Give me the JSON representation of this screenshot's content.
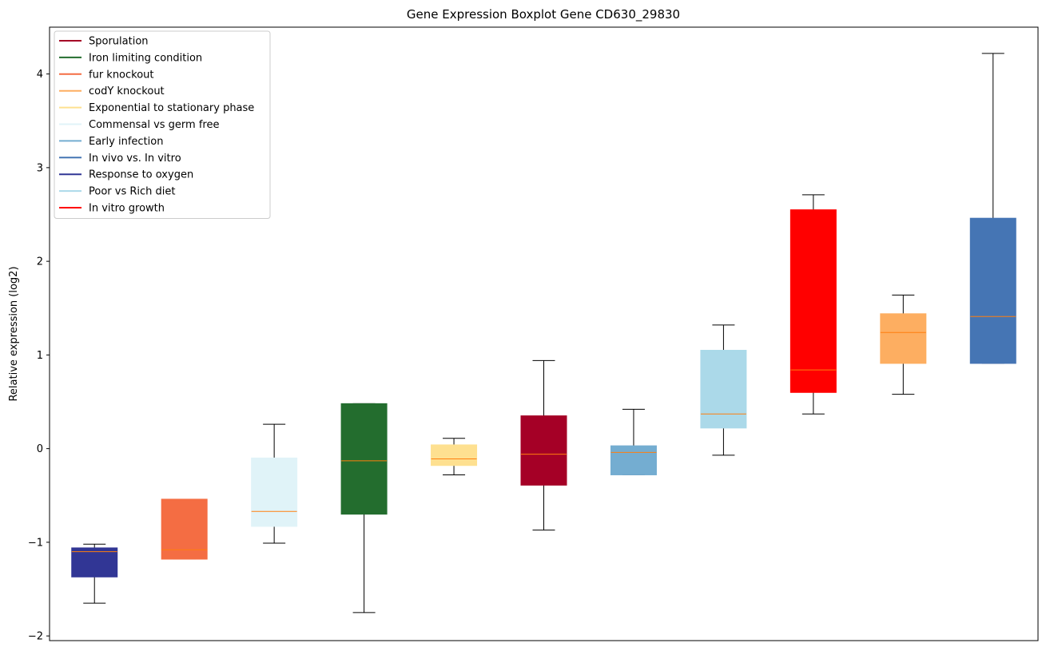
{
  "chart_data": {
    "type": "boxplot",
    "title": "Gene Expression Boxplot Gene CD630_29830",
    "xlabel": "",
    "ylabel": "Relative expression (log2)",
    "ylim": [
      -2.05,
      4.5
    ],
    "yticks": [
      -2,
      -1,
      0,
      1,
      2,
      3,
      4
    ],
    "ytick_labels": [
      "−2",
      "−1",
      "0",
      "1",
      "2",
      "3",
      "4"
    ],
    "legend_position": "top-left",
    "legend": [
      {
        "label": "Sporulation",
        "color": "#a50026"
      },
      {
        "label": "Iron limiting condition",
        "color": "#236d2e"
      },
      {
        "label": "fur knockout",
        "color": "#f46d43"
      },
      {
        "label": "codY knockout",
        "color": "#fdae61"
      },
      {
        "label": "Exponential to stationary phase",
        "color": "#fee090"
      },
      {
        "label": "Commensal vs germ free",
        "color": "#e0f3f8"
      },
      {
        "label": "Early infection",
        "color": "#74add1"
      },
      {
        "label": "In vivo vs. In vitro",
        "color": "#4575b4"
      },
      {
        "label": "Response to oxygen",
        "color": "#313695"
      },
      {
        "label": "Poor vs Rich diet",
        "color": "#abd9e9"
      },
      {
        "label": "In vitro growth",
        "color": "#ff0000"
      }
    ],
    "median_color": "#ff7f0e",
    "boxes": [
      {
        "group": "Response to oxygen",
        "color": "#313695",
        "whisker_low": -1.65,
        "q1": -1.37,
        "median": -1.1,
        "q3": -1.06,
        "whisker_high": -1.02
      },
      {
        "group": "fur knockout",
        "color": "#f46d43",
        "whisker_low": -1.18,
        "q1": -1.18,
        "median": -1.08,
        "q3": -0.54,
        "whisker_high": -0.54
      },
      {
        "group": "Commensal vs germ free",
        "color": "#e0f3f8",
        "whisker_low": -1.01,
        "q1": -0.83,
        "median": -0.67,
        "q3": -0.1,
        "whisker_high": 0.26
      },
      {
        "group": "Iron limiting condition",
        "color": "#236d2e",
        "whisker_low": -1.75,
        "q1": -0.7,
        "median": -0.13,
        "q3": 0.48,
        "whisker_high": 0.48
      },
      {
        "group": "Exponential to stationary phase",
        "color": "#fee090",
        "whisker_low": -0.28,
        "q1": -0.18,
        "median": -0.11,
        "q3": 0.04,
        "whisker_high": 0.11
      },
      {
        "group": "Sporulation",
        "color": "#a50026",
        "whisker_low": -0.87,
        "q1": -0.39,
        "median": -0.06,
        "q3": 0.35,
        "whisker_high": 0.94
      },
      {
        "group": "Early infection",
        "color": "#74add1",
        "whisker_low": -0.28,
        "q1": -0.28,
        "median": -0.04,
        "q3": 0.03,
        "whisker_high": 0.42
      },
      {
        "group": "Poor vs Rich diet",
        "color": "#abd9e9",
        "whisker_low": -0.07,
        "q1": 0.22,
        "median": 0.37,
        "q3": 1.05,
        "whisker_high": 1.32
      },
      {
        "group": "In vitro growth",
        "color": "#ff0000",
        "whisker_low": 0.37,
        "q1": 0.6,
        "median": 0.84,
        "q3": 2.55,
        "whisker_high": 2.71
      },
      {
        "group": "codY knockout",
        "color": "#fdae61",
        "whisker_low": 0.58,
        "q1": 0.91,
        "median": 1.24,
        "q3": 1.44,
        "whisker_high": 1.64
      },
      {
        "group": "In vivo vs. In vitro",
        "color": "#4575b4",
        "whisker_low": 0.91,
        "q1": 0.91,
        "median": 1.41,
        "q3": 2.46,
        "whisker_high": 4.22
      }
    ]
  }
}
